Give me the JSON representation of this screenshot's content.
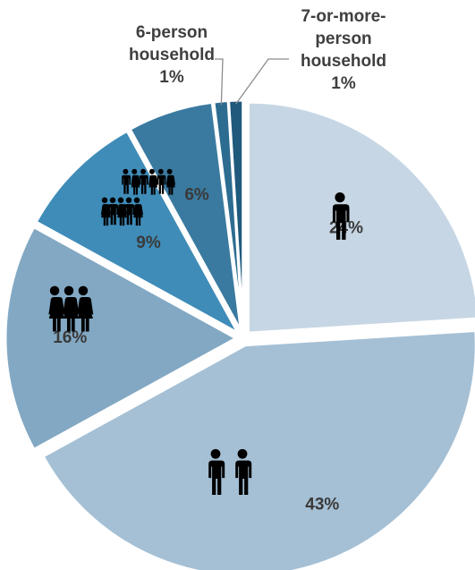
{
  "chart_data": {
    "type": "pie",
    "values": [
      24,
      43,
      16,
      9,
      6,
      1,
      1
    ],
    "data_labels": [
      "24%",
      "43%",
      "16%",
      "9%",
      "6%",
      "1%",
      "1%"
    ],
    "category_labels": [
      "",
      "",
      "",
      "",
      "",
      "6-person household",
      "7-or-more-person household"
    ],
    "annotations": {
      "six_person": [
        "6-person",
        "household",
        "1%"
      ],
      "seven_person": [
        "7-or-more-",
        "person",
        "household",
        "1%"
      ]
    },
    "colors": [
      "#c6d6e4",
      "#a5c0d5",
      "#82a8c3",
      "#3f8cb8",
      "#3a7aa0",
      "#2d6c91",
      "#1f5a7d"
    ],
    "exploded": true,
    "start_angle": "12 o'clock, clockwise"
  },
  "icons": {
    "one_person": "person-icon",
    "two_person": "two-people-icon",
    "three_person": "three-people-icon",
    "five_person": "five-people-icon",
    "six_person": "six-people-icon"
  }
}
